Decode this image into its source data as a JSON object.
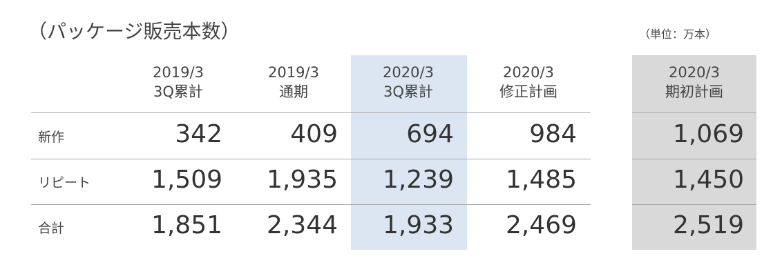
{
  "header": {
    "title": "（パッケージ販売本数）",
    "unit": "（単位：万本）"
  },
  "table": {
    "columns": [
      [
        "2019/3",
        "3Q累計"
      ],
      [
        "2019/3",
        "通期"
      ],
      [
        "2020/3",
        "3Q累計"
      ],
      [
        "2020/3",
        "修正計画"
      ],
      [
        "2020/3",
        "期初計画"
      ]
    ],
    "rows": [
      {
        "label": "新作",
        "values": [
          "342",
          "409",
          "694",
          "984",
          "1,069"
        ]
      },
      {
        "label": "リピート",
        "values": [
          "1,509",
          "1,935",
          "1,239",
          "1,485",
          "1,450"
        ]
      },
      {
        "label": "合計",
        "values": [
          "1,851",
          "2,344",
          "1,933",
          "2,469",
          "2,519"
        ]
      }
    ]
  }
}
